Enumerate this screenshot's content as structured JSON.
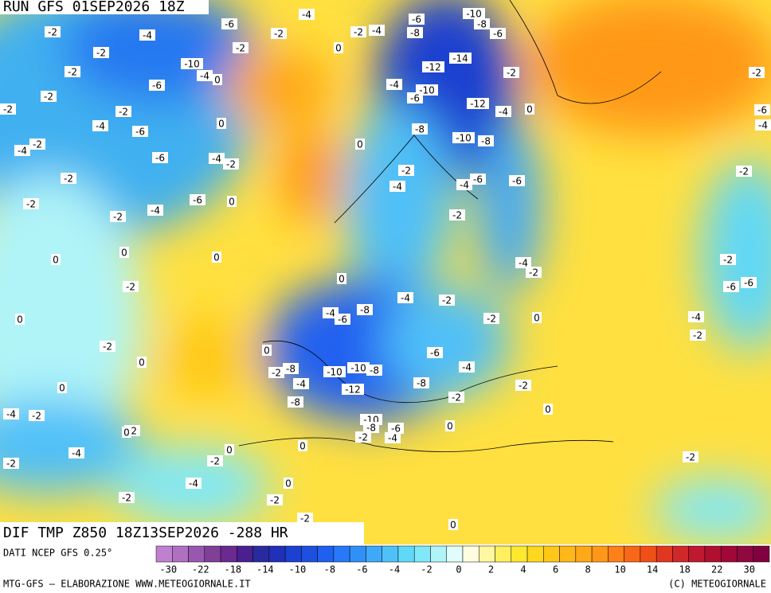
{
  "header": {
    "run": "RUN GFS 01SEP2026 18Z"
  },
  "map": {
    "title": "DIF TMP Z850 18Z13SEP2026 -288 HR",
    "contour_labels": [
      -2,
      -4,
      -4,
      -6,
      -10,
      -8,
      -6,
      -6,
      -2,
      -2,
      -4,
      -8,
      -2,
      -10,
      -4,
      0,
      -2,
      0,
      -2,
      -2,
      -6,
      -2,
      -4,
      -6,
      -2,
      0,
      -4,
      -10,
      -6,
      -12,
      -14,
      -2,
      -12,
      -4,
      0,
      -8,
      -10,
      -8,
      0,
      -2,
      -4,
      -6,
      -4,
      -2,
      -2,
      -2,
      -4,
      -4,
      -6,
      -6,
      -2,
      -4,
      -6,
      0,
      -2,
      -2,
      -2,
      -6,
      -2,
      -4,
      0,
      0,
      0,
      -4,
      -2,
      -2,
      -6,
      -6,
      0,
      -4,
      -2,
      -2,
      -4,
      -8,
      -6,
      -2,
      0,
      -4,
      -2,
      0,
      -2,
      0,
      0,
      -8,
      -2,
      -10,
      -10,
      -8,
      -4,
      -12,
      -6,
      -4,
      -8,
      -8,
      -2,
      -2,
      0,
      -4,
      -2,
      0,
      -10,
      -8,
      -6,
      -2,
      -4,
      0,
      -2,
      0,
      0,
      0,
      -2,
      -2,
      -4,
      -2,
      -4,
      0,
      -2,
      -2,
      0,
      -2
    ]
  },
  "legend": {
    "source": "DATI NCEP GFS 0.25°",
    "colors": [
      "#c080d0",
      "#b070c0",
      "#9858b0",
      "#804098",
      "#6a2a90",
      "#4a2090",
      "#2a2aa0",
      "#2030b8",
      "#1c40d0",
      "#1e50e0",
      "#2060f0",
      "#2878f8",
      "#3090f8",
      "#40a8f8",
      "#50c0f8",
      "#60d8f8",
      "#80e8f8",
      "#b0f4f8",
      "#e0fcfc",
      "#fffde0",
      "#fff8a0",
      "#fff060",
      "#ffe830",
      "#ffd820",
      "#ffc818",
      "#ffb818",
      "#ffa818",
      "#ff9818",
      "#ff8018",
      "#f86818",
      "#f05018",
      "#e03820",
      "#d02828",
      "#c01830",
      "#b01030",
      "#a00838",
      "#900840",
      "#800040"
    ],
    "ticks": [
      -30,
      -22,
      -18,
      -14,
      -10,
      -8,
      -6,
      -4,
      -2,
      0,
      2,
      4,
      6,
      8,
      10,
      14,
      18,
      22,
      30
    ]
  },
  "footer": {
    "left": "MTG-GFS — ELABORAZIONE WWW.METEOGIORNALE.IT",
    "right": "(C) METEOGIORNALE"
  }
}
